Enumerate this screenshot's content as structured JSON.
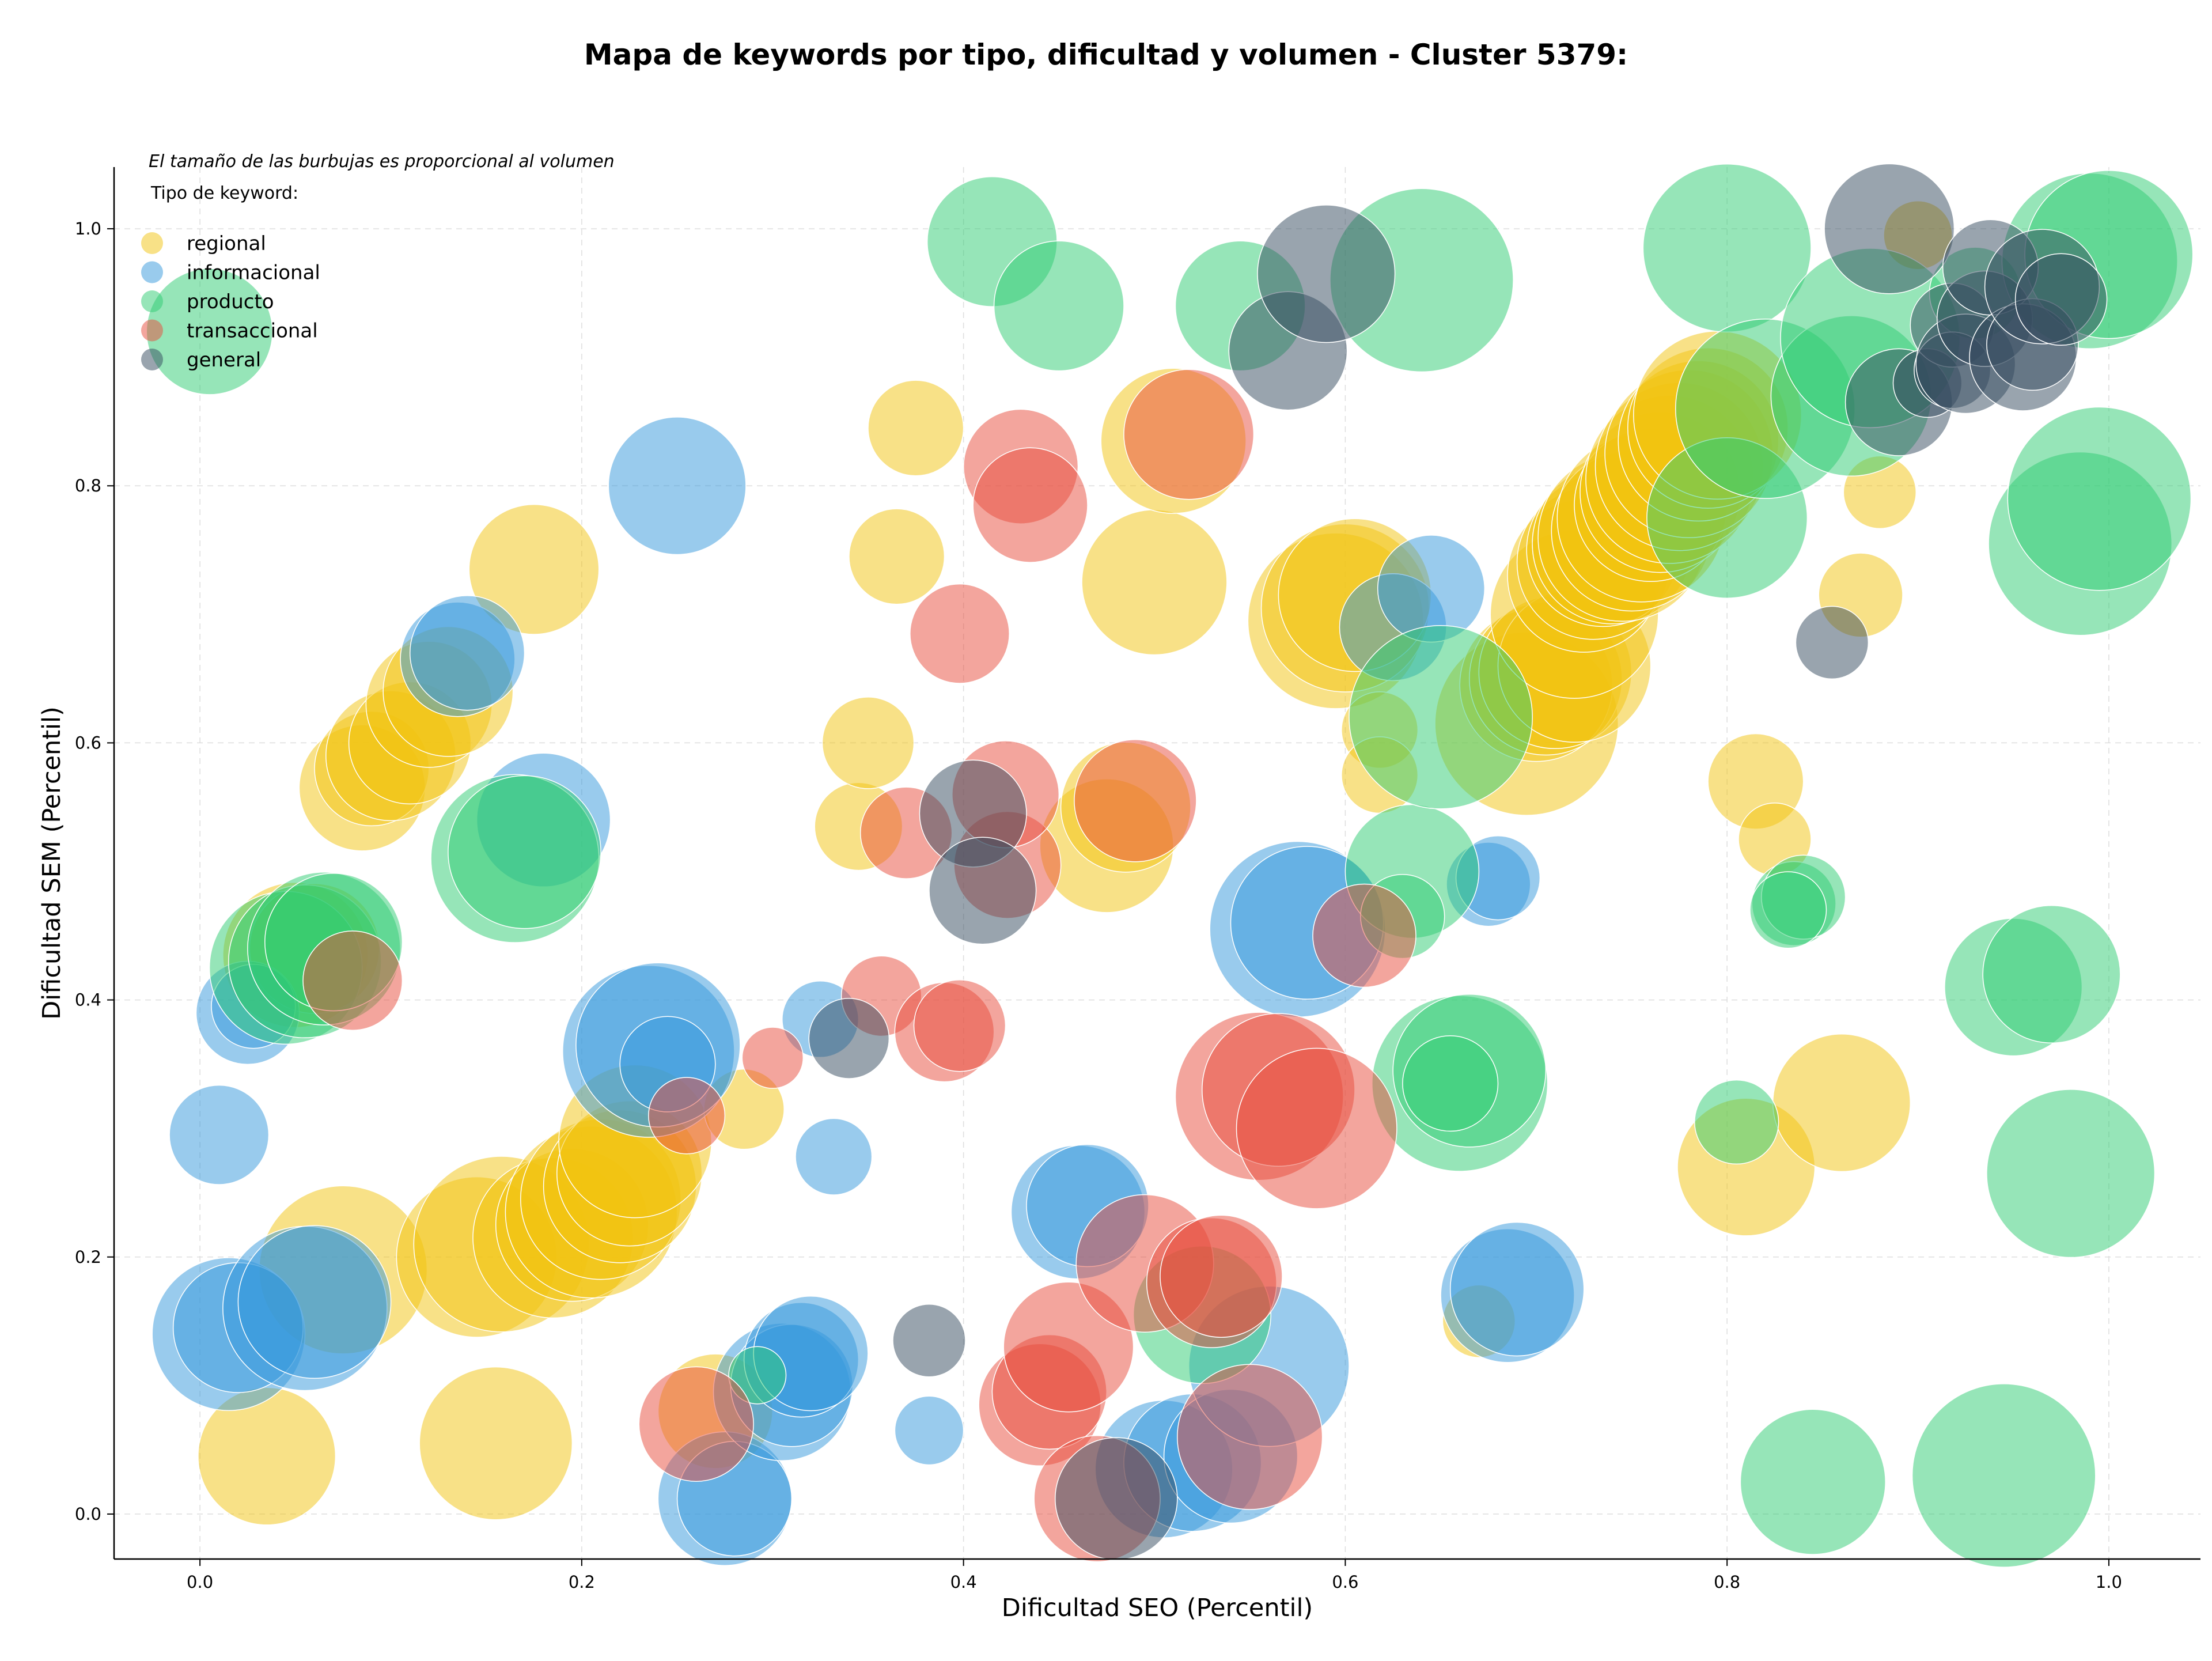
{
  "chart_data": {
    "type": "scatter",
    "title": "Mapa de keywords por tipo, dificultad y volumen - Cluster 5379:",
    "xlabel": "Dificultad SEO (Percentil)",
    "ylabel": "Dificultad SEM (Percentil)",
    "xlim": [
      -0.045,
      1.048
    ],
    "ylim": [
      -0.035,
      1.048
    ],
    "xticks": [
      "0.0",
      "0.2",
      "0.4",
      "0.6",
      "0.8",
      "1.0"
    ],
    "yticks": [
      "0.0",
      "0.2",
      "0.4",
      "0.6",
      "0.8",
      "1.0"
    ],
    "grid": true,
    "note": "El tamaño de las burbujas es proporcional al volumen",
    "legend": {
      "title": "Tipo de keyword:",
      "position": "top-left"
    },
    "series": [
      {
        "name": "regional",
        "color": "#f1c40f",
        "points": [
          [
            0.035,
            0.045,
            0.036
          ],
          [
            0.075,
            0.19,
            0.044
          ],
          [
            0.085,
            0.565,
            0.033
          ],
          [
            0.09,
            0.58,
            0.03
          ],
          [
            0.1,
            0.59,
            0.034
          ],
          [
            0.11,
            0.6,
            0.032
          ],
          [
            0.12,
            0.63,
            0.033
          ],
          [
            0.13,
            0.64,
            0.034
          ],
          [
            0.145,
            0.2,
            0.042
          ],
          [
            0.158,
            0.21,
            0.046
          ],
          [
            0.155,
            0.055,
            0.04
          ],
          [
            0.175,
            0.735,
            0.034
          ],
          [
            0.185,
            0.215,
            0.042
          ],
          [
            0.195,
            0.225,
            0.04
          ],
          [
            0.205,
            0.235,
            0.045
          ],
          [
            0.21,
            0.245,
            0.042
          ],
          [
            0.22,
            0.255,
            0.04
          ],
          [
            0.225,
            0.265,
            0.038
          ],
          [
            0.228,
            0.29,
            0.04
          ],
          [
            0.05,
            0.435,
            0.038
          ],
          [
            0.06,
            0.44,
            0.034
          ],
          [
            0.27,
            0.08,
            0.03
          ],
          [
            0.285,
            0.315,
            0.021
          ],
          [
            0.345,
            0.535,
            0.023
          ],
          [
            0.35,
            0.6,
            0.024
          ],
          [
            0.365,
            0.745,
            0.025
          ],
          [
            0.375,
            0.845,
            0.025
          ],
          [
            0.475,
            0.52,
            0.035
          ],
          [
            0.485,
            0.55,
            0.034
          ],
          [
            0.5,
            0.725,
            0.038
          ],
          [
            0.51,
            0.835,
            0.038
          ],
          [
            0.595,
            0.695,
            0.046
          ],
          [
            0.6,
            0.705,
            0.044
          ],
          [
            0.605,
            0.715,
            0.04
          ],
          [
            0.618,
            0.61,
            0.02
          ],
          [
            0.618,
            0.575,
            0.02
          ],
          [
            0.67,
            0.15,
            0.019
          ],
          [
            0.695,
            0.615,
            0.048
          ],
          [
            0.7,
            0.645,
            0.04
          ],
          [
            0.705,
            0.65,
            0.04
          ],
          [
            0.71,
            0.655,
            0.04
          ],
          [
            0.72,
            0.66,
            0.04
          ],
          [
            0.72,
            0.7,
            0.044
          ],
          [
            0.725,
            0.73,
            0.04
          ],
          [
            0.73,
            0.74,
            0.04
          ],
          [
            0.735,
            0.75,
            0.04
          ],
          [
            0.74,
            0.755,
            0.042
          ],
          [
            0.745,
            0.76,
            0.044
          ],
          [
            0.75,
            0.765,
            0.042
          ],
          [
            0.755,
            0.775,
            0.044
          ],
          [
            0.76,
            0.785,
            0.04
          ],
          [
            0.765,
            0.795,
            0.042
          ],
          [
            0.77,
            0.805,
            0.044
          ],
          [
            0.775,
            0.815,
            0.044
          ],
          [
            0.78,
            0.825,
            0.044
          ],
          [
            0.785,
            0.835,
            0.042
          ],
          [
            0.79,
            0.845,
            0.042
          ],
          [
            0.795,
            0.855,
            0.044
          ],
          [
            0.81,
            0.27,
            0.036
          ],
          [
            0.815,
            0.57,
            0.025
          ],
          [
            0.825,
            0.525,
            0.019
          ],
          [
            0.86,
            0.32,
            0.036
          ],
          [
            0.87,
            0.715,
            0.022
          ],
          [
            0.88,
            0.795,
            0.019
          ],
          [
            0.9,
            0.995,
            0.018
          ]
        ]
      },
      {
        "name": "informacional",
        "color": "#3498db",
        "points": [
          [
            0.01,
            0.295,
            0.026
          ],
          [
            0.015,
            0.14,
            0.04
          ],
          [
            0.02,
            0.145,
            0.034
          ],
          [
            0.025,
            0.39,
            0.027
          ],
          [
            0.028,
            0.395,
            0.022
          ],
          [
            0.055,
            0.16,
            0.043
          ],
          [
            0.06,
            0.165,
            0.04
          ],
          [
            0.135,
            0.665,
            0.03
          ],
          [
            0.14,
            0.67,
            0.03
          ],
          [
            0.18,
            0.54,
            0.035
          ],
          [
            0.25,
            0.8,
            0.036
          ],
          [
            0.235,
            0.36,
            0.045
          ],
          [
            0.24,
            0.365,
            0.043
          ],
          [
            0.245,
            0.35,
            0.025
          ],
          [
            0.275,
            0.012,
            0.035
          ],
          [
            0.28,
            0.012,
            0.03
          ],
          [
            0.305,
            0.095,
            0.036
          ],
          [
            0.31,
            0.1,
            0.032
          ],
          [
            0.315,
            0.12,
            0.03
          ],
          [
            0.32,
            0.125,
            0.03
          ],
          [
            0.325,
            0.385,
            0.02
          ],
          [
            0.332,
            0.278,
            0.02
          ],
          [
            0.382,
            0.065,
            0.018
          ],
          [
            0.46,
            0.235,
            0.035
          ],
          [
            0.465,
            0.24,
            0.032
          ],
          [
            0.505,
            0.035,
            0.036
          ],
          [
            0.52,
            0.04,
            0.036
          ],
          [
            0.54,
            0.045,
            0.035
          ],
          [
            0.56,
            0.115,
            0.042
          ],
          [
            0.575,
            0.455,
            0.046
          ],
          [
            0.58,
            0.46,
            0.04
          ],
          [
            0.625,
            0.69,
            0.028
          ],
          [
            0.645,
            0.72,
            0.028
          ],
          [
            0.675,
            0.49,
            0.022
          ],
          [
            0.68,
            0.495,
            0.022
          ],
          [
            0.685,
            0.17,
            0.035
          ],
          [
            0.69,
            0.175,
            0.035
          ]
        ]
      },
      {
        "name": "producto",
        "color": "#2ecc71",
        "points": [
          [
            0.005,
            0.92,
            0.033
          ],
          [
            0.045,
            0.425,
            0.04
          ],
          [
            0.055,
            0.43,
            0.04
          ],
          [
            0.065,
            0.44,
            0.04
          ],
          [
            0.07,
            0.445,
            0.036
          ],
          [
            0.165,
            0.51,
            0.044
          ],
          [
            0.17,
            0.515,
            0.04
          ],
          [
            0.292,
            0.108,
            0.015
          ],
          [
            0.415,
            0.99,
            0.034
          ],
          [
            0.45,
            0.94,
            0.034
          ],
          [
            0.525,
            0.155,
            0.036
          ],
          [
            0.545,
            0.94,
            0.034
          ],
          [
            0.635,
            0.5,
            0.035
          ],
          [
            0.63,
            0.465,
            0.022
          ],
          [
            0.64,
            0.96,
            0.048
          ],
          [
            0.65,
            0.62,
            0.048
          ],
          [
            0.66,
            0.335,
            0.046
          ],
          [
            0.665,
            0.345,
            0.04
          ],
          [
            0.655,
            0.335,
            0.025
          ],
          [
            0.8,
            0.985,
            0.044
          ],
          [
            0.8,
            0.775,
            0.042
          ],
          [
            0.805,
            0.305,
            0.022
          ],
          [
            0.82,
            0.86,
            0.047
          ],
          [
            0.835,
            0.475,
            0.022
          ],
          [
            0.84,
            0.48,
            0.022
          ],
          [
            0.832,
            0.47,
            0.02
          ],
          [
            0.845,
            0.025,
            0.038
          ],
          [
            0.865,
            0.87,
            0.042
          ],
          [
            0.875,
            0.915,
            0.047
          ],
          [
            0.93,
            0.95,
            0.024
          ],
          [
            0.945,
            0.03,
            0.048
          ],
          [
            0.95,
            0.41,
            0.036
          ],
          [
            0.97,
            0.42,
            0.036
          ],
          [
            0.98,
            0.265,
            0.044
          ],
          [
            0.985,
            0.755,
            0.048
          ],
          [
            0.995,
            0.79,
            0.048
          ],
          [
            0.99,
            0.975,
            0.046
          ],
          [
            1.0,
            0.98,
            0.044
          ]
        ]
      },
      {
        "name": "transaccional",
        "color": "#e74c3c",
        "points": [
          [
            0.08,
            0.415,
            0.026
          ],
          [
            0.255,
            0.31,
            0.02
          ],
          [
            0.26,
            0.07,
            0.03
          ],
          [
            0.3,
            0.355,
            0.016
          ],
          [
            0.357,
            0.403,
            0.021
          ],
          [
            0.37,
            0.53,
            0.024
          ],
          [
            0.39,
            0.375,
            0.026
          ],
          [
            0.398,
            0.38,
            0.024
          ],
          [
            0.398,
            0.685,
            0.026
          ],
          [
            0.423,
            0.505,
            0.028
          ],
          [
            0.422,
            0.56,
            0.028
          ],
          [
            0.43,
            0.815,
            0.03
          ],
          [
            0.435,
            0.785,
            0.03
          ],
          [
            0.44,
            0.085,
            0.032
          ],
          [
            0.445,
            0.095,
            0.03
          ],
          [
            0.455,
            0.13,
            0.034
          ],
          [
            0.47,
            0.012,
            0.033
          ],
          [
            0.495,
            0.195,
            0.036
          ],
          [
            0.49,
            0.555,
            0.032
          ],
          [
            0.518,
            0.84,
            0.034
          ],
          [
            0.53,
            0.18,
            0.034
          ],
          [
            0.535,
            0.185,
            0.032
          ],
          [
            0.55,
            0.06,
            0.038
          ],
          [
            0.555,
            0.325,
            0.044
          ],
          [
            0.565,
            0.33,
            0.04
          ],
          [
            0.585,
            0.3,
            0.042
          ],
          [
            0.61,
            0.45,
            0.027
          ]
        ]
      },
      {
        "name": "general",
        "color": "#34495e",
        "points": [
          [
            0.34,
            0.37,
            0.021
          ],
          [
            0.382,
            0.135,
            0.019
          ],
          [
            0.405,
            0.545,
            0.028
          ],
          [
            0.41,
            0.485,
            0.028
          ],
          [
            0.48,
            0.012,
            0.032
          ],
          [
            0.57,
            0.905,
            0.031
          ],
          [
            0.59,
            0.965,
            0.036
          ],
          [
            0.855,
            0.678,
            0.019
          ],
          [
            0.885,
            1.0,
            0.034
          ],
          [
            0.89,
            0.865,
            0.028
          ],
          [
            0.905,
            0.88,
            0.018
          ],
          [
            0.918,
            0.925,
            0.022
          ],
          [
            0.918,
            0.89,
            0.02
          ],
          [
            0.925,
            0.895,
            0.026
          ],
          [
            0.935,
            0.93,
            0.025
          ],
          [
            0.938,
            0.97,
            0.025
          ],
          [
            0.955,
            0.9,
            0.028
          ],
          [
            0.96,
            0.91,
            0.024
          ],
          [
            0.965,
            0.955,
            0.03
          ],
          [
            0.975,
            0.945,
            0.024
          ]
        ]
      }
    ]
  }
}
